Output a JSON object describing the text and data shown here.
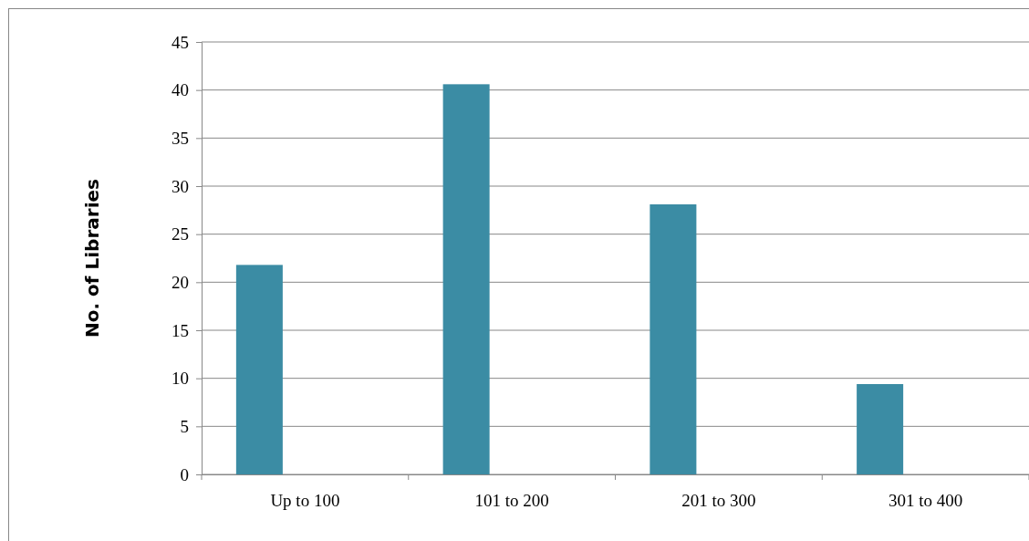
{
  "chart_data": {
    "type": "bar",
    "ylabel": "No. of Libraries",
    "categories": [
      "Up to 100",
      "101 to 200",
      "201 to 300",
      "301 to 400"
    ],
    "values": [
      21.8,
      40.6,
      28.1,
      9.4
    ],
    "color": "#3b8ca4",
    "ylim": [
      0,
      45
    ],
    "yticks": [
      0,
      5,
      10,
      15,
      20,
      25,
      30,
      35,
      40,
      45
    ],
    "grid": "y"
  }
}
